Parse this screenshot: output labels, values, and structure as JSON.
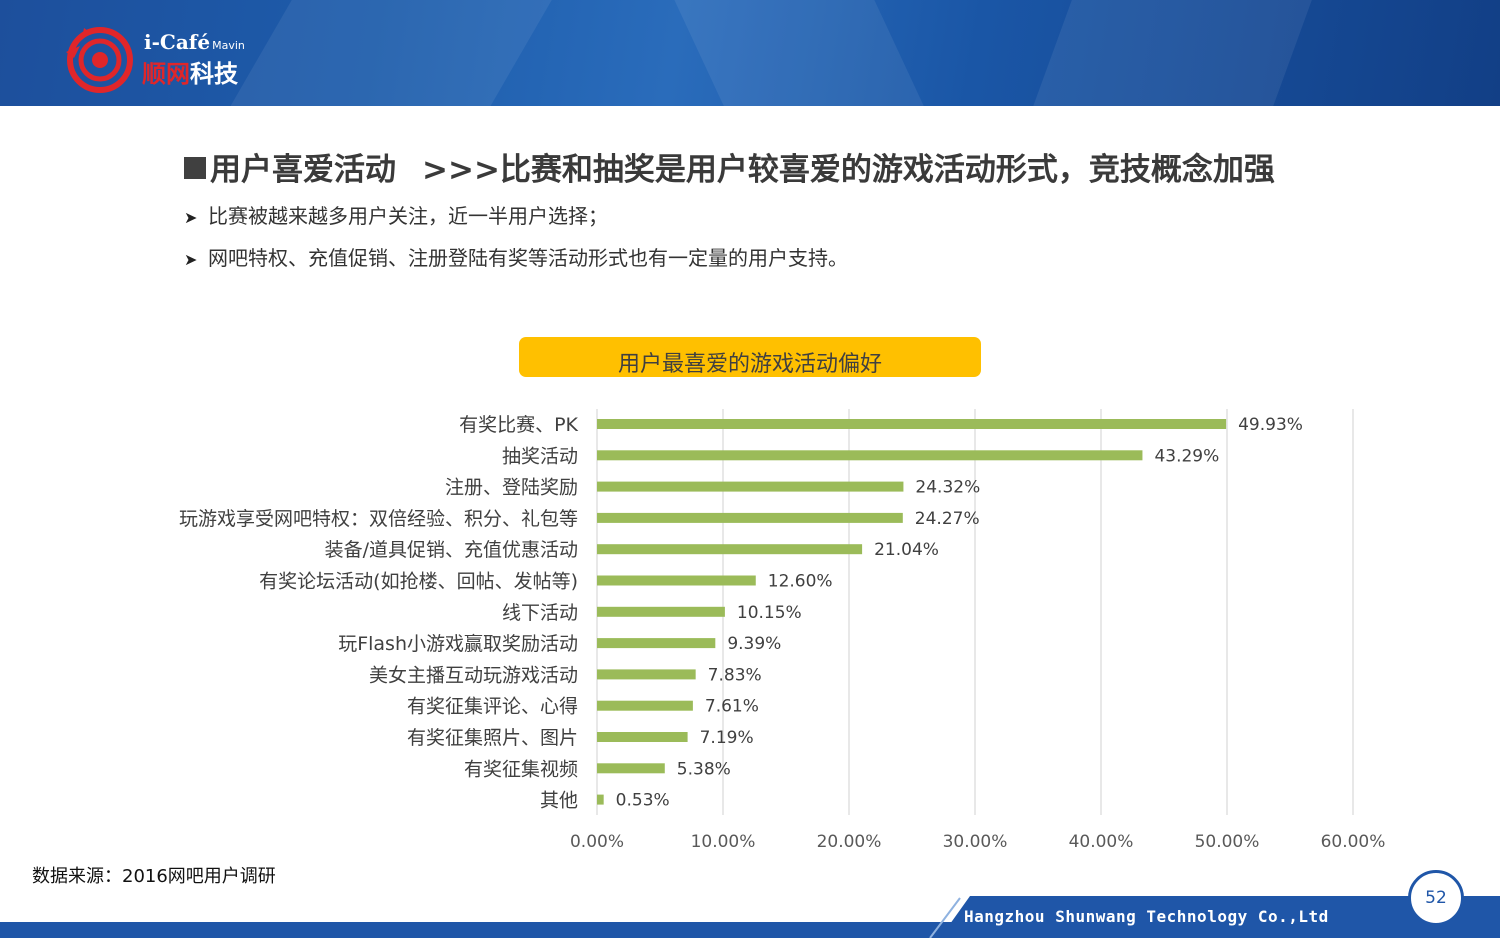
{
  "logo": {
    "brand": "i-Café",
    "brand_suffix": "Mavin",
    "name_red": "顺网",
    "name_white": "科技",
    "colors": {
      "red": "#e0262a",
      "white": "#ffffff"
    }
  },
  "heading": {
    "topic": "用户喜爱活动",
    "headline": ">>>比赛和抽奖是用户较喜爱的游戏活动形式，竞技概念加强"
  },
  "bullets": [
    "比赛被越来越多用户关注，近一半用户选择；",
    "网吧特权、充值促销、注册登陆有奖等活动形式也有一定量的用户支持。"
  ],
  "chart_data": {
    "type": "bar",
    "orientation": "horizontal",
    "title": "用户最喜爱的游戏活动偏好",
    "categories": [
      "有奖比赛、PK",
      "抽奖活动",
      "注册、登陆奖励",
      "玩游戏享受网吧特权：双倍经验、积分、礼包等",
      "装备/道具促销、充值优惠活动",
      "有奖论坛活动(如抢楼、回帖、发帖等)",
      "线下活动",
      "玩Flash小游戏赢取奖励活动",
      "美女主播互动玩游戏活动",
      "有奖征集评论、心得",
      "有奖征集照片、图片",
      "有奖征集视频",
      "其他"
    ],
    "values": [
      49.93,
      43.29,
      24.32,
      24.27,
      21.04,
      12.6,
      10.15,
      9.39,
      7.83,
      7.61,
      7.19,
      5.38,
      0.53
    ],
    "value_labels": [
      "49.93%",
      "43.29%",
      "24.32%",
      "24.27%",
      "21.04%",
      "12.60%",
      "10.15%",
      "9.39%",
      "7.83%",
      "7.61%",
      "7.19%",
      "5.38%",
      "0.53%"
    ],
    "xlim": [
      0,
      60
    ],
    "x_ticks": [
      0,
      10,
      20,
      30,
      40,
      50,
      60
    ],
    "x_tick_labels": [
      "0.00%",
      "10.00%",
      "20.00%",
      "30.00%",
      "40.00%",
      "50.00%",
      "60.00%"
    ],
    "grid": true,
    "bar_color": "#9bbb59",
    "title_bg": "#ffc000"
  },
  "source": "数据来源：2016网吧用户调研",
  "footer": {
    "company": "Hangzhou Shunwang Technology Co.,Ltd",
    "page_number": "52",
    "color": "#1f56a8"
  }
}
